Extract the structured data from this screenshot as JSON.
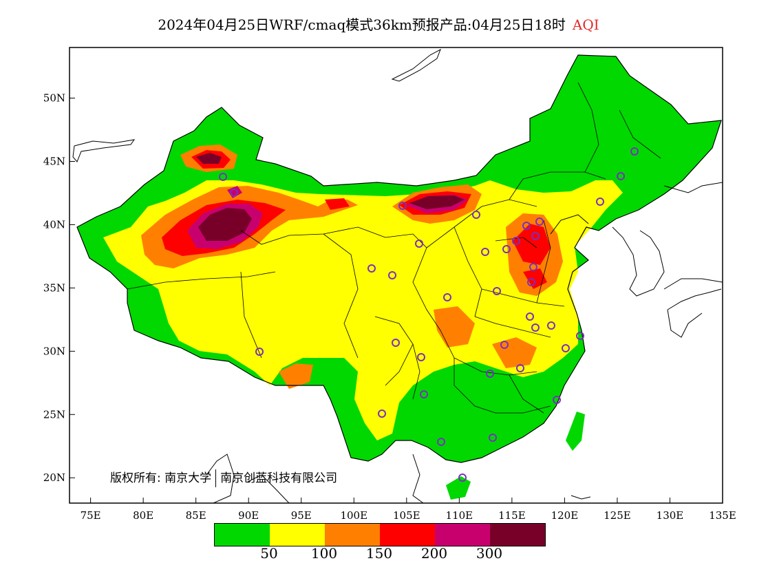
{
  "title": {
    "product": "2024年04月25日WRF/cmaq模式36km预报产品:04月25日18时",
    "variable": "AQI",
    "variable_color": "#e0282a"
  },
  "axes": {
    "x_ticks": [
      "75E",
      "80E",
      "85E",
      "90E",
      "95E",
      "100E",
      "105E",
      "110E",
      "115E",
      "120E",
      "125E",
      "130E",
      "135E"
    ],
    "y_ticks": [
      "20N",
      "25N",
      "30N",
      "35N",
      "40N",
      "45N",
      "50N"
    ],
    "lon_range": [
      73,
      135
    ],
    "lat_range": [
      18,
      54
    ]
  },
  "legend": {
    "colors": [
      "#00d800",
      "#ffff00",
      "#ff8000",
      "#ff0000",
      "#c8006e",
      "#780028"
    ],
    "labels": [
      "50",
      "100",
      "150",
      "200",
      "300"
    ]
  },
  "copyright": {
    "left": "版权所有: 南京大学",
    "right": "南京创蓝科技有限公司"
  },
  "colors": {
    "good": "#00d800",
    "moderate": "#ffff00",
    "unhealthy_sensitive": "#ff8000",
    "unhealthy": "#ff0000",
    "very_unhealthy": "#c8006e",
    "hazardous": "#780028",
    "station_marker": "#7b2fbe"
  }
}
